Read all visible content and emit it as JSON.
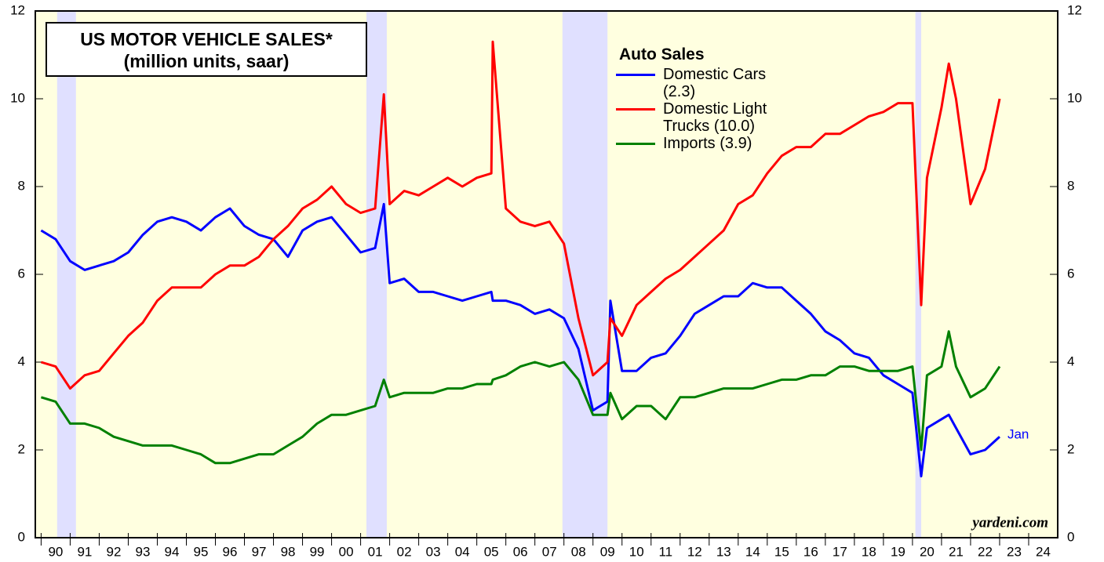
{
  "chart_data": {
    "type": "line",
    "title": "US MOTOR VEHICLE SALES*",
    "subtitle": "(million units, saar)",
    "legend_title": "Auto Sales",
    "annotation": "Jan",
    "source": "yardeni.com",
    "x": [
      1990.0,
      1990.5,
      1991.0,
      1991.5,
      1992.0,
      1992.5,
      1993.0,
      1993.5,
      1994.0,
      1994.5,
      1995.0,
      1995.5,
      1996.0,
      1996.5,
      1997.0,
      1997.5,
      1998.0,
      1998.5,
      1999.0,
      1999.5,
      2000.0,
      2000.5,
      2001.0,
      2001.5,
      2001.8,
      2002.0,
      2002.5,
      2003.0,
      2003.5,
      2004.0,
      2004.5,
      2005.0,
      2005.5,
      2005.55,
      2006.0,
      2006.5,
      2007.0,
      2007.5,
      2008.0,
      2008.5,
      2009.0,
      2009.5,
      2009.6,
      2010.0,
      2010.5,
      2011.0,
      2011.5,
      2012.0,
      2012.5,
      2013.0,
      2013.5,
      2014.0,
      2014.5,
      2015.0,
      2015.5,
      2016.0,
      2016.5,
      2017.0,
      2017.5,
      2018.0,
      2018.5,
      2019.0,
      2019.5,
      2020.0,
      2020.3,
      2020.5,
      2021.0,
      2021.25,
      2021.5,
      2022.0,
      2022.5,
      2023.0
    ],
    "series": [
      {
        "name": "Domestic Cars (2.3)",
        "color": "#0000ff",
        "values": [
          7.0,
          6.8,
          6.3,
          6.1,
          6.2,
          6.3,
          6.5,
          6.9,
          7.2,
          7.3,
          7.2,
          7.0,
          7.3,
          7.5,
          7.1,
          6.9,
          6.8,
          6.4,
          7.0,
          7.2,
          7.3,
          6.9,
          6.5,
          6.6,
          7.6,
          5.8,
          5.9,
          5.6,
          5.6,
          5.5,
          5.4,
          5.5,
          5.6,
          5.4,
          5.4,
          5.3,
          5.1,
          5.2,
          5.0,
          4.3,
          2.9,
          3.1,
          5.4,
          3.8,
          3.8,
          4.1,
          4.2,
          4.6,
          5.1,
          5.3,
          5.5,
          5.5,
          5.8,
          5.7,
          5.7,
          5.4,
          5.1,
          4.7,
          4.5,
          4.2,
          4.1,
          3.7,
          3.5,
          3.3,
          1.4,
          2.5,
          2.7,
          2.8,
          2.5,
          1.9,
          2.0,
          2.3
        ]
      },
      {
        "name": "Domestic Light Trucks (10.0)",
        "color": "#ff0000",
        "values": [
          4.0,
          3.9,
          3.4,
          3.7,
          3.8,
          4.2,
          4.6,
          4.9,
          5.4,
          5.7,
          5.7,
          5.7,
          6.0,
          6.2,
          6.2,
          6.4,
          6.8,
          7.1,
          7.5,
          7.7,
          8.0,
          7.6,
          7.4,
          7.5,
          10.1,
          7.6,
          7.9,
          7.8,
          8.0,
          8.2,
          8.0,
          8.2,
          8.3,
          11.3,
          7.5,
          7.2,
          7.1,
          7.2,
          6.7,
          5.0,
          3.7,
          4.0,
          5.0,
          4.6,
          5.3,
          5.6,
          5.9,
          6.1,
          6.4,
          6.7,
          7.0,
          7.6,
          7.8,
          8.3,
          8.7,
          8.9,
          8.9,
          9.2,
          9.2,
          9.4,
          9.6,
          9.7,
          9.9,
          9.9,
          5.3,
          8.2,
          9.8,
          10.8,
          10.0,
          7.6,
          8.4,
          10.0
        ]
      },
      {
        "name": "Imports (3.9)",
        "color": "#008000",
        "values": [
          3.2,
          3.1,
          2.6,
          2.6,
          2.5,
          2.3,
          2.2,
          2.1,
          2.1,
          2.1,
          2.0,
          1.9,
          1.7,
          1.7,
          1.8,
          1.9,
          1.9,
          2.1,
          2.3,
          2.6,
          2.8,
          2.8,
          2.9,
          3.0,
          3.6,
          3.2,
          3.3,
          3.3,
          3.3,
          3.4,
          3.4,
          3.5,
          3.5,
          3.6,
          3.7,
          3.9,
          4.0,
          3.9,
          4.0,
          3.6,
          2.8,
          2.8,
          3.3,
          2.7,
          3.0,
          3.0,
          2.7,
          3.2,
          3.2,
          3.3,
          3.4,
          3.4,
          3.4,
          3.5,
          3.6,
          3.6,
          3.7,
          3.7,
          3.9,
          3.9,
          3.8,
          3.8,
          3.8,
          3.9,
          2.0,
          3.7,
          3.9,
          4.7,
          3.9,
          3.2,
          3.4,
          3.9
        ]
      }
    ],
    "recessions": [
      [
        1990.55,
        1991.2
      ],
      [
        2001.2,
        2001.9
      ],
      [
        2007.95,
        2009.5
      ],
      [
        2020.1,
        2020.3
      ]
    ],
    "xlim": [
      1989.8,
      2025
    ],
    "xticks": [
      {
        "value": 1990,
        "label": "90"
      },
      {
        "value": 1991,
        "label": "91"
      },
      {
        "value": 1992,
        "label": "92"
      },
      {
        "value": 1993,
        "label": "93"
      },
      {
        "value": 1994,
        "label": "94"
      },
      {
        "value": 1995,
        "label": "95"
      },
      {
        "value": 1996,
        "label": "96"
      },
      {
        "value": 1997,
        "label": "97"
      },
      {
        "value": 1998,
        "label": "98"
      },
      {
        "value": 1999,
        "label": "99"
      },
      {
        "value": 2000,
        "label": "00"
      },
      {
        "value": 2001,
        "label": "01"
      },
      {
        "value": 2002,
        "label": "02"
      },
      {
        "value": 2003,
        "label": "03"
      },
      {
        "value": 2004,
        "label": "04"
      },
      {
        "value": 2005,
        "label": "05"
      },
      {
        "value": 2006,
        "label": "06"
      },
      {
        "value": 2007,
        "label": "07"
      },
      {
        "value": 2008,
        "label": "08"
      },
      {
        "value": 2009,
        "label": "09"
      },
      {
        "value": 2010,
        "label": "10"
      },
      {
        "value": 2011,
        "label": "11"
      },
      {
        "value": 2012,
        "label": "12"
      },
      {
        "value": 2013,
        "label": "13"
      },
      {
        "value": 2014,
        "label": "14"
      },
      {
        "value": 2015,
        "label": "15"
      },
      {
        "value": 2016,
        "label": "16"
      },
      {
        "value": 2017,
        "label": "17"
      },
      {
        "value": 2018,
        "label": "18"
      },
      {
        "value": 2019,
        "label": "19"
      },
      {
        "value": 2020,
        "label": "20"
      },
      {
        "value": 2021,
        "label": "21"
      },
      {
        "value": 2022,
        "label": "22"
      },
      {
        "value": 2023,
        "label": "23"
      },
      {
        "value": 2024,
        "label": "24"
      }
    ],
    "ylim": [
      0,
      12
    ],
    "yticks": [
      0,
      2,
      4,
      6,
      8,
      10,
      12
    ]
  }
}
